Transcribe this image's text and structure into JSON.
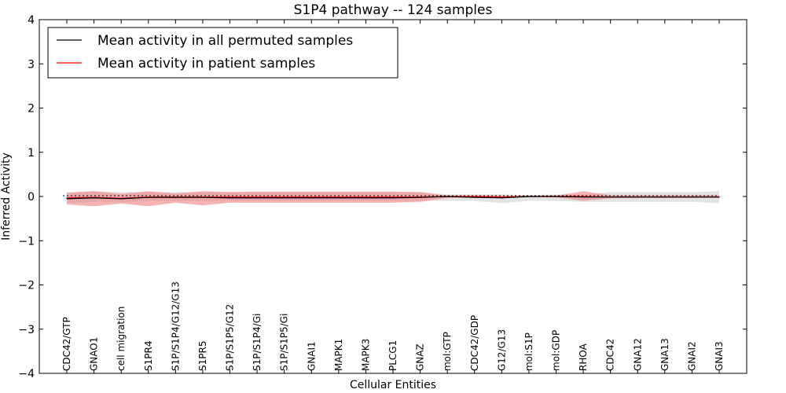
{
  "chart_data": {
    "type": "line",
    "title": "S1P4 pathway -- 124 samples",
    "xlabel": "Cellular Entities",
    "ylabel": "Inferred Activity",
    "ylim": [
      -4,
      4
    ],
    "yticks": [
      -4,
      -3,
      -2,
      -1,
      0,
      1,
      2,
      3,
      4
    ],
    "ytick_labels": [
      "−4",
      "−3",
      "−2",
      "−1",
      "0",
      "1",
      "2",
      "3",
      "4"
    ],
    "categories": [
      "CDC42/GTP",
      "GNAO1",
      "cell migration",
      "S1PR4",
      "S1P/S1P4/G12/G13",
      "S1PR5",
      "S1P/S1P5/G12",
      "S1P/S1P4/Gi",
      "S1P/S1P5/Gi",
      "GNAI1",
      "MAPK1",
      "MAPK3",
      "PLCG1",
      "GNAZ",
      "mol:GTP",
      "CDC42/GDP",
      "G12/G13",
      "mol:S1P",
      "mol:GDP",
      "RHOA",
      "CDC42",
      "GNA12",
      "GNA13",
      "GNAI2",
      "GNAI3"
    ],
    "legend": {
      "position": "top-left",
      "entries": [
        "Mean activity in all permuted samples",
        "Mean activity in patient samples"
      ]
    },
    "series": [
      {
        "name": "Mean activity in all permuted samples",
        "color": "#000000",
        "band_color": "#c8c8c8",
        "values": [
          -0.05,
          -0.03,
          -0.05,
          -0.02,
          -0.02,
          -0.02,
          -0.03,
          -0.03,
          -0.03,
          -0.03,
          -0.03,
          -0.03,
          -0.03,
          -0.02,
          0.0,
          -0.02,
          -0.03,
          0.0,
          0.0,
          -0.01,
          -0.01,
          -0.01,
          -0.01,
          -0.01,
          -0.01
        ],
        "lower": [
          -0.15,
          -0.12,
          -0.13,
          -0.1,
          -0.1,
          -0.1,
          -0.1,
          -0.1,
          -0.1,
          -0.1,
          -0.1,
          -0.1,
          -0.1,
          -0.1,
          -0.1,
          -0.1,
          -0.15,
          -0.1,
          -0.1,
          -0.12,
          -0.12,
          -0.12,
          -0.12,
          -0.12,
          -0.15
        ],
        "upper": [
          0.1,
          0.12,
          0.1,
          0.1,
          0.1,
          0.1,
          0.1,
          0.1,
          0.1,
          0.1,
          0.1,
          0.1,
          0.1,
          0.1,
          0.05,
          0.05,
          0.05,
          0.03,
          0.05,
          0.05,
          0.1,
          0.1,
          0.1,
          0.1,
          0.12
        ]
      },
      {
        "name": "Mean activity in patient samples",
        "color": "#ff0000",
        "band_color": "#f08080",
        "values": [
          -0.03,
          -0.02,
          -0.04,
          -0.01,
          -0.01,
          -0.01,
          -0.01,
          -0.01,
          -0.01,
          -0.01,
          -0.01,
          -0.01,
          -0.01,
          -0.01,
          0.0,
          0.0,
          -0.01,
          0.0,
          0.0,
          0.0,
          -0.01,
          -0.01,
          -0.01,
          -0.01,
          -0.01
        ],
        "lower": [
          -0.18,
          -0.22,
          -0.16,
          -0.22,
          -0.14,
          -0.2,
          -0.14,
          -0.14,
          -0.14,
          -0.14,
          -0.14,
          -0.14,
          -0.14,
          -0.12,
          -0.03,
          -0.02,
          -0.02,
          -0.01,
          -0.02,
          -0.1,
          -0.04,
          -0.03,
          -0.03,
          -0.03,
          -0.03
        ],
        "upper": [
          0.08,
          0.12,
          0.06,
          0.12,
          0.07,
          0.12,
          0.1,
          0.11,
          0.11,
          0.11,
          0.11,
          0.11,
          0.11,
          0.1,
          0.02,
          0.02,
          0.02,
          0.01,
          0.02,
          0.12,
          0.03,
          0.03,
          0.03,
          0.03,
          0.03
        ]
      }
    ]
  }
}
